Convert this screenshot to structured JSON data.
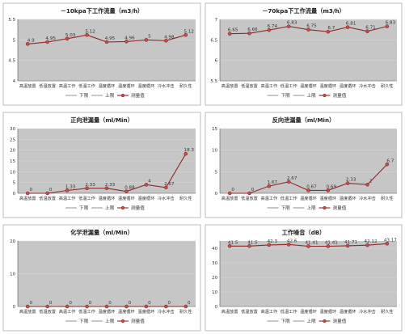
{
  "chart_data": [
    {
      "type": "line",
      "title": "－10kpa下工作流量（m3/h）",
      "categories": [
        "高温放置",
        "低温放置",
        "高温工作",
        "低温工作",
        "温度循环",
        "温度循环",
        "温度循环",
        "冷水冲击",
        "耐久性"
      ],
      "y_ticks": [
        "4",
        "4.5",
        "5",
        "5.5"
      ],
      "ylim": [
        4,
        5.5
      ],
      "series": [
        {
          "name": "测量值",
          "values": [
            4.9,
            4.95,
            5.03,
            5.12,
            4.95,
            4.96,
            5.0,
            4.98,
            5.12
          ]
        }
      ],
      "data_labels": [
        "4.9",
        "4.95",
        "5.03",
        "5.12",
        "4.95",
        "4.96",
        "5",
        "4.98",
        "5.12"
      ],
      "legend_items": [
        "下限",
        "上限",
        "测量值"
      ],
      "colors": {
        "series": "#c0504d",
        "plot": "#c6c6c6"
      }
    },
    {
      "type": "line",
      "title": "－70kpa下工作流量（m3/h）",
      "categories": [
        "高温放置",
        "低温放置",
        "高温工作",
        "低温工作",
        "温度循环",
        "温度循环",
        "温度循环",
        "冷水冲击",
        "耐久性"
      ],
      "y_ticks": [
        "5.5",
        "6",
        "6.5",
        "7"
      ],
      "ylim": [
        5.5,
        7
      ],
      "series": [
        {
          "name": "测量值",
          "values": [
            6.65,
            6.66,
            6.74,
            6.83,
            6.75,
            6.7,
            6.81,
            6.71,
            6.83
          ]
        }
      ],
      "data_labels": [
        "6.65",
        "6.66",
        "6.74",
        "6.83",
        "6.75",
        "6.7",
        "6.81",
        "6.71",
        "6.83"
      ],
      "legend_items": [
        "下限",
        "上限",
        "测量值"
      ],
      "colors": {
        "series": "#c0504d",
        "plot": "#c6c6c6"
      }
    },
    {
      "type": "line",
      "title": "正向泄漏量（ml/Min）",
      "categories": [
        "高温放置",
        "低温放置",
        "高温工作",
        "低温工作",
        "温度循环",
        "温度循环",
        "温度循环",
        "冷水冲击",
        "耐久性"
      ],
      "y_ticks": [
        "0",
        "5",
        "10",
        "15",
        "20",
        "25",
        "30"
      ],
      "ylim": [
        0,
        30
      ],
      "series": [
        {
          "name": "测量值",
          "values": [
            0,
            0,
            1.33,
            2.33,
            2.33,
            0.88,
            4,
            2.67,
            18.3
          ]
        }
      ],
      "data_labels": [
        "0",
        "0",
        "1.33",
        "2.33",
        "2.33",
        "0.88",
        "4",
        "2.67",
        "18.3"
      ],
      "legend_items": [
        "下限",
        "上限",
        "测量值"
      ],
      "colors": {
        "series": "#c0504d",
        "plot": "#c6c6c6"
      }
    },
    {
      "type": "line",
      "title": "反向泄漏量（ml/Min）",
      "categories": [
        "高温放置",
        "低温放置",
        "高温工作",
        "低温工作",
        "温度循环",
        "温度循环",
        "温度循环",
        "冷水冲击",
        "耐久性"
      ],
      "y_ticks": [
        "0",
        "5",
        "10",
        "15"
      ],
      "ylim": [
        0,
        15
      ],
      "series": [
        {
          "name": "测量值",
          "values": [
            0,
            0,
            1.67,
            2.67,
            0.67,
            0.69,
            2.33,
            2,
            6.7
          ]
        }
      ],
      "data_labels": [
        "0",
        "0",
        "1.67",
        "2.67",
        "0.67",
        "0.69",
        "2.33",
        "2",
        "6.7"
      ],
      "legend_items": [
        "下限",
        "上限",
        "测量值"
      ],
      "colors": {
        "series": "#c0504d",
        "plot": "#c6c6c6"
      }
    },
    {
      "type": "line",
      "title": "化学泄漏量（ml/Min）",
      "categories": [
        "高温放置",
        "低温放置",
        "高温工作",
        "低温工作",
        "温度循环",
        "温度循环",
        "温度循环",
        "冷水冲击",
        "耐久性"
      ],
      "y_ticks": [
        "0",
        "10",
        "20"
      ],
      "ylim": [
        0,
        20
      ],
      "series": [
        {
          "name": "测量值",
          "values": [
            0,
            0,
            0,
            0,
            0,
            0,
            0,
            0,
            0
          ]
        }
      ],
      "data_labels": [
        "0",
        "0",
        "0",
        "0",
        "0",
        "0",
        "0",
        "0",
        "0"
      ],
      "legend_items": [
        "下限",
        "上限",
        "测量值"
      ],
      "colors": {
        "series": "#c0504d",
        "plot": "#c6c6c6"
      }
    },
    {
      "type": "line",
      "title": "工作噪音（dB）",
      "categories": [
        "高温放置",
        "低温放置",
        "高温工作",
        "低温工作",
        "温度循环",
        "温度循环",
        "温度循环",
        "冷水冲击",
        "耐久性"
      ],
      "y_ticks": [
        "0",
        "10",
        "20",
        "30",
        "40"
      ],
      "ylim": [
        0,
        45
      ],
      "series": [
        {
          "name": "测量值",
          "values": [
            41.5,
            41.5,
            42.3,
            42.6,
            41.41,
            41.41,
            41.71,
            42.12,
            43.17
          ]
        }
      ],
      "data_labels": [
        "41.5",
        "41.5",
        "42.3",
        "42.6",
        "41.41",
        "41.41",
        "41.71",
        "42.12",
        "43.17"
      ],
      "legend_items": [
        "下限",
        "上限",
        "测量值"
      ],
      "colors": {
        "series": "#c0504d",
        "plot": "#c6c6c6"
      }
    }
  ]
}
